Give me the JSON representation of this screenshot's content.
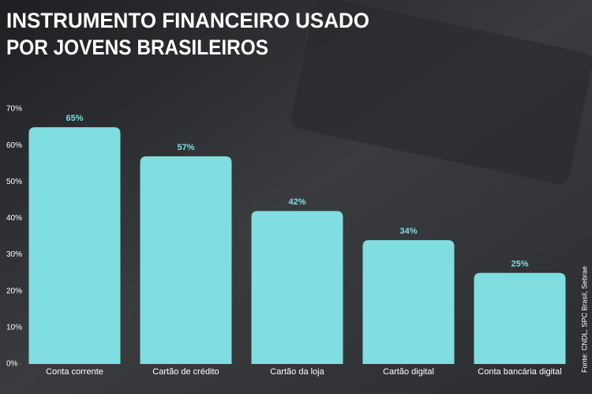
{
  "chart_data": {
    "type": "bar",
    "title": [
      "INSTRUMENTO FINANCEIRO USADO",
      "POR JOVENS BRASILEIROS"
    ],
    "categories": [
      "Conta corrente",
      "Cartão de crédito",
      "Cartão da loja",
      "Cartão digital",
      "Conta bancária digital"
    ],
    "values": [
      65,
      57,
      42,
      34,
      25
    ],
    "value_labels": [
      "65%",
      "57%",
      "42%",
      "34%",
      "25%"
    ],
    "color": "#80dde0",
    "ylim": [
      0,
      70
    ],
    "yticks": [
      {
        "value": 0,
        "label": "0%"
      },
      {
        "value": 10,
        "label": "10%"
      },
      {
        "value": 20,
        "label": "20%"
      },
      {
        "value": 30,
        "label": "30%"
      },
      {
        "value": 40,
        "label": "40%"
      },
      {
        "value": 50,
        "label": "50%"
      },
      {
        "value": 60,
        "label": "60%"
      },
      {
        "value": 70,
        "label": "70%"
      }
    ],
    "source": "Fonte: CNDL, SPC Brasil, Sebrae"
  }
}
